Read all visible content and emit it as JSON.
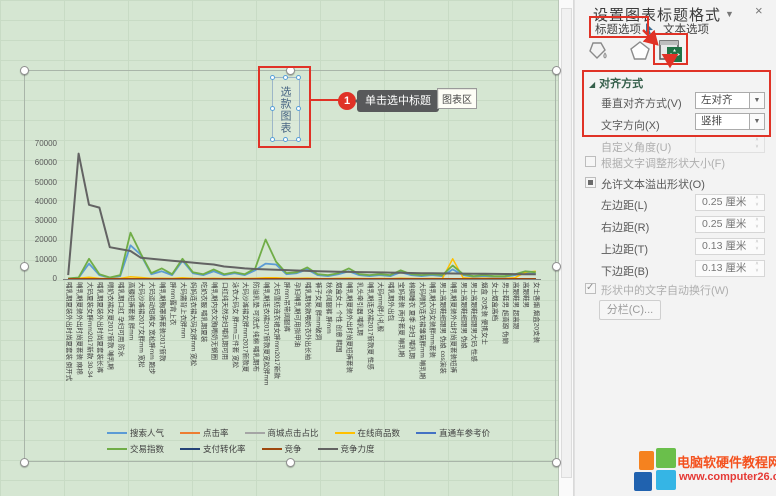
{
  "panel": {
    "title": "设置图表标题格式",
    "chevron": "▼",
    "close": "×",
    "tabs": {
      "title_options": "标题选项",
      "text_options": "文本选项"
    },
    "alignment": {
      "header": "对齐方式",
      "collapse_glyph": "◢",
      "vertical_label": "垂直对齐方式(V)",
      "vertical_value": "左对齐",
      "direction_label": "文字方向(X)",
      "direction_value": "竖排",
      "angle_label": "自定义角度(U)",
      "autofit_label": "根据文字调整形状大小(F)",
      "overflow_label": "允许文本溢出形状(O)",
      "margins": [
        {
          "label": "左边距(L)",
          "value": "0.25 厘米"
        },
        {
          "label": "右边距(R)",
          "value": "0.25 厘米"
        },
        {
          "label": "上边距(T)",
          "value": "0.13 厘米"
        },
        {
          "label": "下边距(B)",
          "value": "0.13 厘米"
        }
      ],
      "wrap_label": "形状中的文字自动换行(W)",
      "columns_label": "分栏(C)..."
    }
  },
  "callout": {
    "step": "1",
    "text": "单击选中标题",
    "chart_area_tip": "图表区"
  },
  "watermark": {
    "name": "电脑软硬件教程网",
    "url": "www.computer26.com"
  },
  "chart_data": {
    "type": "line",
    "title": "选款图表",
    "ylim": [
      0,
      70000
    ],
    "ytick_step": 10000,
    "grid": false,
    "legend_position": "bottom",
    "categories": [
      "哺乳期夏装外出时尚夏套装 倒开式",
      "哺乳期夏装外出时尚夏套装 麻棉",
      "大码夏装女胖mm2017新款 30-34",
      "哺乳期夏装外出时尚夏套装长裤",
      "喂奶衣裙女夏2017新款 哺乳期",
      "哺乳期口红 孕妇可用 防水",
      "高腰短裤套装 胖mm",
      "大码沙滩裙2017女胖mm 宽松",
      "大码运动短裤女 宽松胖mm 跑步",
      "哺乳期胸罩裤套装2017新款",
      "胖mm露背上衣",
      "大码露背上衣胖mm",
      "妈妈连衣裙大码女胖mm 宽松",
      "吃奶衣服 哺乳期夏装",
      "哺乳期内衣文胸喂奶无钢圈",
      "口红纯天然孕妇哺乳期可用",
      "泳衣大码女 胖mm三件套 宽松",
      "大码沙滩裙女胖mm2017新款夏",
      "防溢乳垫 可洗式 纯棉 哺乳期布",
      "哺乳期连衣裙2017新款夏宽松胖mm",
      "大码雪纺连衣裙女胖mm2017新款",
      "胖mm吊带阔腿裤",
      "孕妇哺乳期可用指甲油",
      "哺乳期秋款喂奶衣外出长袖",
      "裤子女夏 胖mm破洞",
      "秋冬阔腿裤 胖mm",
      "烟盒女士 个性 创意 韩国",
      "哺乳期夏装外出时尚夏短裤套装",
      "乳头牵引器 哺乳期",
      "哺乳期连衣裙2017新款夏 性感",
      "大码mm胖小礼服",
      "哺乳期外出包",
      "宝妈套装 两件套夏 哺乳期",
      "棉绸睡衣 夏季 孕妇 哺乳期",
      "大码喂奶连衣裙雏菊胖mm 哺乳期",
      "哺乳期大码女装胖mm套装",
      "男士高跟鞋细跟男 伪娘 cos演装",
      "哺乳期夏装外出时尚夏套装短裤",
      "男士高跟鞋细跟男 伪娘",
      "男士高跟鞋细跟男大码 性感",
      "烟盒 20支装 便携女士",
      "女士烟盒高档",
      "男士鞋男 超高跟 伪娘",
      "高跟鞋男 超高跟",
      "高跟鞋男",
      "女士香烟 烟盒20支装"
    ],
    "series": [
      {
        "name": "搜索人气",
        "color": "#5B9BD5",
        "width": 1.8,
        "values": [
          200,
          600,
          8000,
          2000,
          600,
          1500,
          17500,
          12500,
          2500,
          4000,
          2000,
          9500,
          3000,
          2000,
          4000,
          2000,
          3000,
          2000,
          4500,
          8000,
          7500,
          2500,
          3000,
          5000,
          2000,
          1500,
          2500,
          4000,
          2000,
          1500,
          2000,
          1500,
          3500,
          2000,
          1500,
          2000,
          1500,
          5000,
          2000,
          1200,
          1500,
          1200,
          1200,
          2000,
          3000,
          2500
        ]
      },
      {
        "name": "点击率",
        "color": "#ED7D31",
        "width": 1.5,
        "values": [
          80,
          80,
          80,
          80,
          80,
          80,
          80,
          80,
          80,
          80,
          80,
          80,
          80,
          80,
          80,
          80,
          80,
          80,
          80,
          80,
          80,
          80,
          80,
          80,
          80,
          80,
          80,
          80,
          80,
          80,
          80,
          80,
          80,
          80,
          80,
          80,
          80,
          80,
          80,
          80,
          80,
          80,
          80,
          80,
          80,
          80
        ]
      },
      {
        "name": "商城点击占比",
        "color": "#A5A5A5",
        "width": 1.5,
        "values": [
          60,
          60,
          60,
          60,
          60,
          60,
          60,
          60,
          60,
          60,
          60,
          60,
          60,
          60,
          60,
          60,
          60,
          60,
          60,
          60,
          60,
          60,
          60,
          60,
          60,
          60,
          60,
          60,
          60,
          60,
          60,
          60,
          60,
          60,
          60,
          60,
          60,
          60,
          60,
          60,
          60,
          60,
          60,
          60,
          60,
          60
        ]
      },
      {
        "name": "在线商品数",
        "color": "#FFC000",
        "width": 1.5,
        "values": [
          300,
          400,
          900,
          300,
          200,
          300,
          1200,
          800,
          300,
          400,
          300,
          600,
          300,
          250,
          350,
          250,
          300,
          250,
          400,
          700,
          600,
          300,
          300,
          450,
          250,
          200,
          300,
          400,
          250,
          200,
          250,
          200,
          350,
          250,
          200,
          250,
          200,
          10500,
          600,
          300,
          350,
          300,
          300,
          700,
          3500,
          4000
        ]
      },
      {
        "name": "直通车参考价",
        "color": "#4472C4",
        "width": 1.5,
        "values": [
          120,
          120,
          120,
          120,
          120,
          120,
          120,
          120,
          120,
          120,
          120,
          120,
          120,
          120,
          120,
          120,
          120,
          120,
          120,
          120,
          120,
          120,
          120,
          120,
          120,
          120,
          120,
          120,
          120,
          120,
          120,
          120,
          120,
          120,
          120,
          120,
          120,
          120,
          120,
          120,
          120,
          120,
          120,
          120,
          120,
          120
        ]
      },
      {
        "name": "交易指数",
        "color": "#70AD47",
        "width": 1.8,
        "values": [
          300,
          800,
          10500,
          2500,
          800,
          2000,
          24000,
          13000,
          3000,
          5500,
          2500,
          10500,
          3500,
          2500,
          5000,
          2500,
          3500,
          2500,
          5500,
          20500,
          9000,
          3000,
          3500,
          6000,
          2500,
          2000,
          3000,
          5500,
          2500,
          2000,
          2500,
          2000,
          4500,
          2500,
          2000,
          2500,
          2000,
          7000,
          2500,
          1500,
          2000,
          1500,
          1500,
          2500,
          4000,
          3500
        ]
      },
      {
        "name": "支付转化率",
        "color": "#264478",
        "width": 1.5,
        "values": [
          40,
          40,
          40,
          40,
          40,
          40,
          40,
          40,
          40,
          40,
          40,
          40,
          40,
          40,
          40,
          40,
          40,
          40,
          40,
          40,
          40,
          40,
          40,
          40,
          40,
          40,
          40,
          40,
          40,
          40,
          40,
          40,
          40,
          40,
          40,
          40,
          40,
          40,
          40,
          40,
          40,
          40,
          40,
          40,
          40,
          40
        ]
      },
      {
        "name": "竞争",
        "color": "#9E480E",
        "width": 1.5,
        "values": [
          150,
          150,
          150,
          150,
          150,
          150,
          150,
          150,
          150,
          150,
          150,
          150,
          150,
          150,
          150,
          150,
          150,
          150,
          150,
          150,
          150,
          150,
          150,
          150,
          150,
          150,
          150,
          150,
          150,
          150,
          150,
          150,
          150,
          150,
          150,
          150,
          150,
          150,
          150,
          150,
          150,
          150,
          150,
          150,
          150,
          150
        ]
      },
      {
        "name": "竞争力度",
        "color": "#636363",
        "width": 2,
        "values": [
          2000,
          65000,
          38500,
          37000,
          16500,
          15500,
          14500,
          11000,
          10500,
          10000,
          9500,
          9000,
          8500,
          8000,
          7500,
          6500,
          6000,
          5500,
          5200,
          5000,
          4800,
          4600,
          4400,
          4200,
          4000,
          3900,
          3800,
          3700,
          3600,
          3500,
          3400,
          3300,
          3200,
          3100,
          3000,
          2950,
          2900,
          2850,
          2800,
          2750,
          2700,
          2650,
          2600,
          2550,
          2500,
          2450
        ]
      }
    ]
  }
}
